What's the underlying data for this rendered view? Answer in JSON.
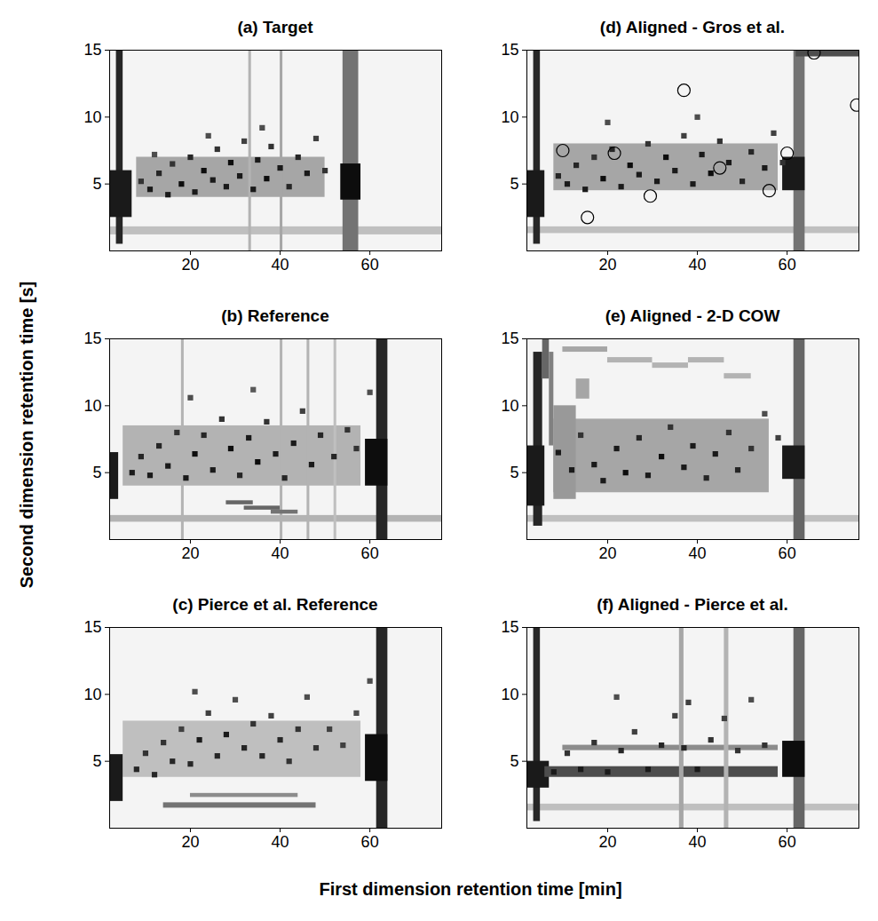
{
  "chart_data": {
    "type": "heatmap",
    "xlabel": "First dimension retention time [min]",
    "ylabel": "Second dimension retention time [s]",
    "xlim": [
      2,
      76
    ],
    "ylim": [
      0,
      15
    ],
    "xticks": [
      20,
      40,
      60
    ],
    "yticks": [
      5,
      10,
      15
    ],
    "zlim": [
      0,
      1
    ],
    "panels": [
      {
        "title": "(a) Target",
        "cells": [
          [
            2,
            76,
            1.2,
            1.8,
            0.25
          ],
          [
            8,
            50,
            4,
            7,
            0.35
          ],
          [
            3.5,
            5,
            0.5,
            15,
            0.85
          ],
          [
            2,
            7,
            2.5,
            6,
            0.9
          ],
          [
            54,
            57.5,
            0,
            15,
            0.55
          ],
          [
            53.5,
            58,
            3.8,
            6.5,
            0.95
          ],
          [
            33,
            33.6,
            0,
            15,
            0.3
          ],
          [
            40,
            40.6,
            0,
            15,
            0.35
          ]
        ],
        "peaks": [
          [
            9,
            5.2,
            0.8
          ],
          [
            11,
            4.6,
            0.9
          ],
          [
            13,
            5.8,
            0.85
          ],
          [
            15,
            4.2,
            0.9
          ],
          [
            16,
            6.5,
            0.8
          ],
          [
            18,
            5,
            0.95
          ],
          [
            20,
            7,
            0.85
          ],
          [
            21,
            4.4,
            0.9
          ],
          [
            23,
            6,
            0.95
          ],
          [
            25,
            5.3,
            0.9
          ],
          [
            26,
            7.6,
            0.8
          ],
          [
            28,
            4.8,
            0.9
          ],
          [
            29,
            6.6,
            0.95
          ],
          [
            31,
            5.6,
            0.9
          ],
          [
            32,
            8.2,
            0.75
          ],
          [
            34,
            4.6,
            0.9
          ],
          [
            35,
            6.8,
            0.9
          ],
          [
            37,
            5.4,
            0.95
          ],
          [
            38,
            7.8,
            0.8
          ],
          [
            40,
            6.2,
            0.9
          ],
          [
            42,
            4.8,
            0.85
          ],
          [
            44,
            7,
            0.85
          ],
          [
            46,
            5.8,
            0.9
          ],
          [
            48,
            8.4,
            0.75
          ],
          [
            50,
            6,
            0.8
          ],
          [
            12,
            7.2,
            0.7
          ],
          [
            24,
            8.6,
            0.7
          ],
          [
            36,
            9.2,
            0.7
          ]
        ]
      },
      {
        "title": "(b) Reference",
        "cells": [
          [
            2,
            76,
            1.3,
            1.8,
            0.3
          ],
          [
            5,
            58,
            4,
            8.5,
            0.3
          ],
          [
            2,
            4,
            3,
            6.5,
            0.9
          ],
          [
            61.5,
            64,
            0,
            15,
            0.85
          ],
          [
            59,
            64,
            4,
            7.5,
            0.95
          ],
          [
            18,
            18.6,
            0,
            15,
            0.3
          ],
          [
            40,
            40.6,
            0,
            15,
            0.3
          ],
          [
            46,
            46.6,
            0,
            15,
            0.3
          ],
          [
            52,
            52.6,
            0,
            15,
            0.25
          ],
          [
            28,
            34,
            2.6,
            2.9,
            0.6
          ],
          [
            32,
            40,
            2.2,
            2.5,
            0.6
          ],
          [
            38,
            44,
            1.9,
            2.2,
            0.55
          ]
        ],
        "peaks": [
          [
            7,
            5,
            0.9
          ],
          [
            9,
            6.2,
            0.85
          ],
          [
            11,
            4.8,
            0.9
          ],
          [
            13,
            7,
            0.85
          ],
          [
            15,
            5.5,
            0.9
          ],
          [
            17,
            8,
            0.8
          ],
          [
            19,
            4.6,
            0.9
          ],
          [
            21,
            6.4,
            0.95
          ],
          [
            23,
            7.8,
            0.85
          ],
          [
            25,
            5.2,
            0.9
          ],
          [
            27,
            9,
            0.8
          ],
          [
            29,
            6.8,
            0.95
          ],
          [
            31,
            4.8,
            0.85
          ],
          [
            33,
            7.6,
            0.9
          ],
          [
            35,
            5.8,
            0.95
          ],
          [
            37,
            8.8,
            0.8
          ],
          [
            39,
            6.4,
            0.9
          ],
          [
            41,
            4.6,
            0.85
          ],
          [
            43,
            7.2,
            0.9
          ],
          [
            45,
            9.6,
            0.75
          ],
          [
            47,
            5.6,
            0.9
          ],
          [
            49,
            7.8,
            0.85
          ],
          [
            52,
            6.2,
            0.85
          ],
          [
            55,
            8.2,
            0.8
          ],
          [
            57,
            6.8,
            0.8
          ],
          [
            20,
            10.6,
            0.7
          ],
          [
            34,
            11.2,
            0.65
          ],
          [
            60,
            11,
            0.7
          ]
        ]
      },
      {
        "title": "(c) Pierce et al. Reference",
        "cells": [
          [
            5,
            58,
            3.8,
            8,
            0.25
          ],
          [
            2,
            5,
            2,
            5.5,
            0.9
          ],
          [
            61.5,
            64,
            0,
            15,
            0.85
          ],
          [
            59,
            64,
            3.5,
            7,
            0.95
          ],
          [
            14,
            48,
            1.5,
            1.9,
            0.55
          ],
          [
            20,
            44,
            2.3,
            2.6,
            0.45
          ]
        ],
        "peaks": [
          [
            8,
            4.4,
            0.85
          ],
          [
            10,
            5.6,
            0.8
          ],
          [
            12,
            4,
            0.85
          ],
          [
            14,
            6.4,
            0.8
          ],
          [
            16,
            5,
            0.85
          ],
          [
            18,
            7.4,
            0.75
          ],
          [
            20,
            4.8,
            0.85
          ],
          [
            22,
            6.6,
            0.9
          ],
          [
            24,
            8.6,
            0.75
          ],
          [
            26,
            5.4,
            0.85
          ],
          [
            28,
            7,
            0.9
          ],
          [
            30,
            9.6,
            0.7
          ],
          [
            32,
            6,
            0.85
          ],
          [
            34,
            7.8,
            0.8
          ],
          [
            36,
            5.4,
            0.85
          ],
          [
            38,
            8.4,
            0.75
          ],
          [
            40,
            6.6,
            0.85
          ],
          [
            42,
            5,
            0.8
          ],
          [
            44,
            7.4,
            0.8
          ],
          [
            46,
            9.8,
            0.7
          ],
          [
            48,
            6,
            0.8
          ],
          [
            51,
            7.4,
            0.75
          ],
          [
            54,
            6.2,
            0.75
          ],
          [
            57,
            8.6,
            0.7
          ],
          [
            21,
            10.2,
            0.7
          ],
          [
            60,
            11,
            0.7
          ]
        ]
      },
      {
        "title": "(d) Aligned - Gros et al.",
        "cells": [
          [
            2,
            76,
            1.3,
            1.8,
            0.25
          ],
          [
            8,
            58,
            4.5,
            8,
            0.35
          ],
          [
            3.5,
            5,
            0.5,
            15,
            0.85
          ],
          [
            2,
            6,
            2.5,
            6,
            0.9
          ],
          [
            61.5,
            64,
            0,
            15,
            0.55
          ],
          [
            59,
            64,
            4.5,
            7,
            0.9
          ],
          [
            62,
            76,
            14.5,
            15,
            0.7
          ]
        ],
        "peaks": [
          [
            9,
            5.6,
            0.85
          ],
          [
            11,
            5,
            0.9
          ],
          [
            13,
            6.4,
            0.85
          ],
          [
            15,
            4.6,
            0.9
          ],
          [
            17,
            7,
            0.8
          ],
          [
            19,
            5.4,
            0.95
          ],
          [
            21,
            7.6,
            0.85
          ],
          [
            23,
            4.8,
            0.9
          ],
          [
            25,
            6.4,
            0.95
          ],
          [
            27,
            5.7,
            0.9
          ],
          [
            29,
            8,
            0.8
          ],
          [
            31,
            5.2,
            0.9
          ],
          [
            33,
            7,
            0.95
          ],
          [
            35,
            6,
            0.9
          ],
          [
            37,
            8.6,
            0.75
          ],
          [
            39,
            5,
            0.9
          ],
          [
            41,
            7.2,
            0.9
          ],
          [
            43,
            5.8,
            0.95
          ],
          [
            45,
            8.2,
            0.8
          ],
          [
            47,
            6.6,
            0.9
          ],
          [
            50,
            5.2,
            0.85
          ],
          [
            52,
            7.4,
            0.85
          ],
          [
            55,
            6.2,
            0.9
          ],
          [
            57,
            8.8,
            0.75
          ],
          [
            59,
            6.6,
            0.8
          ],
          [
            20,
            9.6,
            0.7
          ],
          [
            40,
            10,
            0.7
          ]
        ],
        "markers": [
          [
            10,
            7.5
          ],
          [
            15.5,
            2.5
          ],
          [
            21.5,
            7.3
          ],
          [
            29.5,
            4.1
          ],
          [
            37,
            12
          ],
          [
            45,
            6.2
          ],
          [
            56,
            4.5
          ],
          [
            60,
            7.3
          ],
          [
            66,
            14.8
          ],
          [
            75.5,
            10.9
          ]
        ],
        "marker": "circle"
      },
      {
        "title": "(e) Aligned - 2-D COW",
        "cells": [
          [
            2,
            76,
            1.3,
            1.8,
            0.25
          ],
          [
            8,
            56,
            3.5,
            9,
            0.35
          ],
          [
            3.5,
            5.5,
            1,
            14,
            0.85
          ],
          [
            2,
            6,
            2.5,
            7,
            0.9
          ],
          [
            5.5,
            7,
            12,
            15,
            0.6
          ],
          [
            7,
            8,
            7,
            14,
            0.5
          ],
          [
            8,
            13,
            3,
            10,
            0.4
          ],
          [
            13,
            16,
            10.5,
            12,
            0.35
          ],
          [
            10,
            20,
            14,
            14.4,
            0.35
          ],
          [
            20,
            30,
            13.2,
            13.6,
            0.3
          ],
          [
            30,
            38,
            12.8,
            13.2,
            0.3
          ],
          [
            38,
            46,
            13.2,
            13.6,
            0.3
          ],
          [
            46,
            52,
            12,
            12.4,
            0.3
          ],
          [
            61.5,
            64,
            0,
            15,
            0.6
          ],
          [
            59,
            64,
            4.5,
            7,
            0.9
          ]
        ],
        "peaks": [
          [
            9,
            6.5,
            0.9
          ],
          [
            12,
            5.2,
            0.9
          ],
          [
            14,
            7.8,
            0.8
          ],
          [
            17,
            5.6,
            0.9
          ],
          [
            19,
            4.4,
            0.9
          ],
          [
            22,
            6.8,
            0.9
          ],
          [
            24,
            5,
            0.95
          ],
          [
            27,
            7.6,
            0.85
          ],
          [
            29,
            4.8,
            0.9
          ],
          [
            32,
            6.2,
            0.95
          ],
          [
            34,
            8.4,
            0.8
          ],
          [
            37,
            5.4,
            0.9
          ],
          [
            39,
            7,
            0.9
          ],
          [
            42,
            4.6,
            0.85
          ],
          [
            44,
            6.4,
            0.9
          ],
          [
            47,
            8,
            0.8
          ],
          [
            49,
            5.2,
            0.85
          ],
          [
            52,
            6.8,
            0.8
          ],
          [
            55,
            9.4,
            0.7
          ],
          [
            58,
            7.6,
            0.75
          ]
        ]
      },
      {
        "title": "(f) Aligned - Pierce et al.",
        "cells": [
          [
            2,
            76,
            1.3,
            1.8,
            0.25
          ],
          [
            3.5,
            5,
            0.5,
            15,
            0.85
          ],
          [
            2,
            7,
            3,
            5,
            0.9
          ],
          [
            61.5,
            64,
            0,
            15,
            0.6
          ],
          [
            59,
            64,
            3.8,
            6.5,
            0.95
          ],
          [
            6,
            58,
            3.8,
            4.6,
            0.7
          ],
          [
            10,
            58,
            5.8,
            6.2,
            0.45
          ],
          [
            36,
            37,
            0,
            15,
            0.35
          ],
          [
            46,
            47,
            0,
            15,
            0.3
          ]
        ],
        "peaks": [
          [
            8,
            4.2,
            0.9
          ],
          [
            11,
            5.6,
            0.8
          ],
          [
            14,
            4.4,
            0.9
          ],
          [
            17,
            6.4,
            0.8
          ],
          [
            20,
            4.2,
            0.9
          ],
          [
            23,
            5.8,
            0.85
          ],
          [
            26,
            7.2,
            0.75
          ],
          [
            29,
            4.4,
            0.9
          ],
          [
            32,
            6.2,
            0.85
          ],
          [
            35,
            8.4,
            0.75
          ],
          [
            37,
            6,
            0.85
          ],
          [
            40,
            4.4,
            0.9
          ],
          [
            43,
            6.6,
            0.8
          ],
          [
            46,
            8.2,
            0.75
          ],
          [
            49,
            5.8,
            0.8
          ],
          [
            52,
            9.6,
            0.7
          ],
          [
            55,
            6.2,
            0.8
          ],
          [
            22,
            9.8,
            0.7
          ],
          [
            38,
            9.4,
            0.75
          ]
        ]
      }
    ]
  }
}
